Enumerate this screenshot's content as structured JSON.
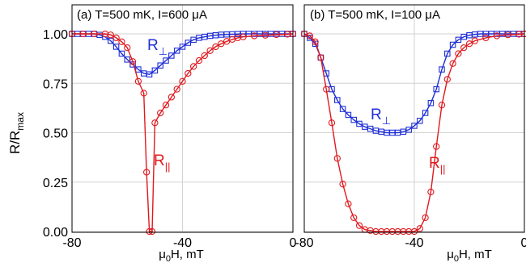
{
  "ylabel": "R/R",
  "ylabel_sub": "max",
  "colors": {
    "perp": "#1f2fd6",
    "par": "#e0191e",
    "grid": "#d2d2d2",
    "frame": "#000000"
  },
  "chart_data": [
    {
      "type": "line",
      "title": "(a) T=500 mK, I=600 μA",
      "xlabel": "μ",
      "xlabel_sub": "0",
      "xlabel_tail": "H, mT",
      "xlim": [
        -80,
        0
      ],
      "ylim": [
        0,
        1.0
      ],
      "xticks": [
        -80,
        -40,
        0
      ],
      "yticks": [
        0.0,
        0.25,
        0.5,
        0.75,
        1.0
      ],
      "ytick_labels": [
        "0.00",
        "0.25",
        "0.50",
        "0.75",
        "1.00"
      ],
      "xtick_labels": [
        "-80",
        "-40",
        "0"
      ],
      "series": [
        {
          "name": "R⊥",
          "key": "perp",
          "marker": "square",
          "x": [
            -80,
            -78,
            -76,
            -74,
            -72,
            -70,
            -68,
            -66,
            -64,
            -62,
            -60,
            -58,
            -56,
            -54,
            -52,
            -50,
            -48,
            -46,
            -44,
            -42,
            -40,
            -38,
            -36,
            -34,
            -32,
            -30,
            -28,
            -26,
            -24,
            -22,
            -20,
            -18,
            -16,
            -14,
            -12,
            -10,
            -8,
            -6,
            -4,
            -2,
            0
          ],
          "y": [
            1.0,
            1.0,
            1.0,
            1.0,
            1.0,
            0.995,
            0.985,
            0.965,
            0.935,
            0.9,
            0.87,
            0.845,
            0.82,
            0.8,
            0.795,
            0.815,
            0.84,
            0.865,
            0.89,
            0.915,
            0.935,
            0.955,
            0.97,
            0.98,
            0.985,
            0.99,
            0.993,
            0.996,
            0.997,
            0.998,
            0.999,
            1.0,
            1.0,
            1.0,
            1.0,
            1.0,
            1.0,
            1.0,
            1.0,
            1.0,
            1.0
          ]
        },
        {
          "name": "R||",
          "key": "par",
          "marker": "circle",
          "x": [
            -80,
            -76,
            -72,
            -68,
            -66,
            -64,
            -62,
            -60,
            -58,
            -56,
            -54,
            -53,
            -52,
            -51,
            -50,
            -48,
            -46,
            -44,
            -42,
            -40,
            -38,
            -36,
            -34,
            -32,
            -30,
            -28,
            -26,
            -24,
            -22,
            -20,
            -18,
            -14,
            -10,
            -6,
            -2,
            0
          ],
          "y": [
            1.0,
            1.0,
            1.0,
            1.0,
            0.995,
            0.98,
            0.96,
            0.93,
            0.86,
            0.76,
            0.7,
            0.3,
            0.0,
            0.0,
            0.55,
            0.6,
            0.64,
            0.68,
            0.72,
            0.76,
            0.8,
            0.835,
            0.865,
            0.89,
            0.915,
            0.935,
            0.95,
            0.962,
            0.972,
            0.98,
            0.985,
            0.99,
            0.993,
            0.996,
            0.998,
            1.0
          ]
        }
      ],
      "annotations": [
        {
          "series": "perp",
          "text": "R",
          "sub": "⊥"
        },
        {
          "series": "par",
          "text": "R",
          "sub": "||"
        }
      ]
    },
    {
      "type": "line",
      "title": "(b) T=500 mK, I=100 μA",
      "xlabel": "μ",
      "xlabel_sub": "0",
      "xlabel_tail": "H, mT",
      "xlim": [
        -80,
        0
      ],
      "ylim": [
        0,
        1.0
      ],
      "xticks": [
        -80,
        -40,
        0
      ],
      "xtick_labels": [
        "-80",
        "-40",
        "0"
      ],
      "series": [
        {
          "name": "R⊥",
          "key": "perp",
          "marker": "square",
          "x": [
            -80,
            -78,
            -76,
            -74,
            -72,
            -70,
            -68,
            -66,
            -64,
            -62,
            -60,
            -58,
            -56,
            -54,
            -52,
            -50,
            -48,
            -46,
            -44,
            -42,
            -40,
            -38,
            -36,
            -34,
            -32,
            -30,
            -28,
            -26,
            -24,
            -22,
            -20,
            -18,
            -16,
            -14,
            -12,
            -10,
            -8,
            -6,
            -4,
            -2,
            0
          ],
          "y": [
            1.0,
            0.98,
            0.95,
            0.88,
            0.8,
            0.72,
            0.665,
            0.62,
            0.59,
            0.565,
            0.545,
            0.53,
            0.52,
            0.51,
            0.505,
            0.5,
            0.5,
            0.5,
            0.505,
            0.515,
            0.535,
            0.56,
            0.6,
            0.65,
            0.72,
            0.82,
            0.9,
            0.945,
            0.97,
            0.985,
            0.993,
            0.997,
            1.0,
            1.0,
            1.0,
            1.0,
            1.0,
            1.0,
            1.0,
            1.0,
            1.0
          ]
        },
        {
          "name": "R||",
          "key": "par",
          "marker": "circle",
          "x": [
            -80,
            -78,
            -76,
            -74,
            -72,
            -70,
            -68,
            -66,
            -64,
            -62,
            -60,
            -58,
            -56,
            -54,
            -52,
            -50,
            -48,
            -46,
            -44,
            -42,
            -40,
            -38,
            -36,
            -34,
            -32,
            -30,
            -28,
            -26,
            -24,
            -22,
            -20,
            -18,
            -14,
            -10,
            -6,
            -2,
            0
          ],
          "y": [
            1.0,
            0.99,
            0.96,
            0.88,
            0.72,
            0.55,
            0.37,
            0.24,
            0.14,
            0.07,
            0.03,
            0.01,
            0.005,
            0.0,
            0.0,
            0.0,
            0.0,
            0.0,
            0.0,
            0.0,
            0.0,
            0.015,
            0.07,
            0.2,
            0.43,
            0.64,
            0.77,
            0.85,
            0.9,
            0.93,
            0.95,
            0.965,
            0.98,
            0.99,
            0.995,
            0.998,
            1.0
          ]
        }
      ],
      "annotations": [
        {
          "series": "perp",
          "text": "R",
          "sub": "⊥"
        },
        {
          "series": "par",
          "text": "R",
          "sub": "||"
        }
      ]
    }
  ]
}
